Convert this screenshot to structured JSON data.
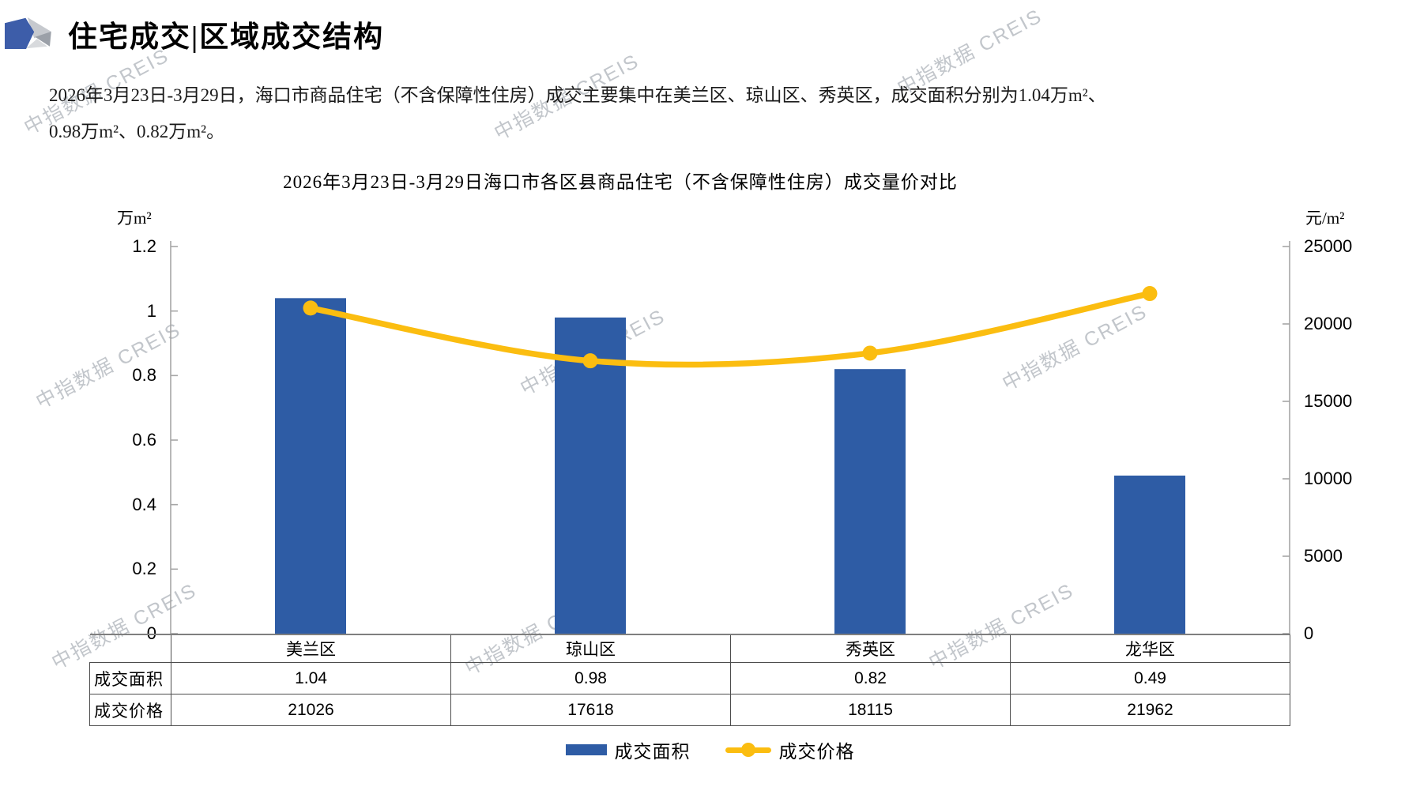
{
  "page": {
    "header": {
      "title": "住宅成交|区域成交结构"
    },
    "intro": {
      "line1": "2026年3月23日-3月29日，海口市商品住宅（不含保障性住房）成交主要集中在美兰区、琼山区、秀英区，成交面积分别为1.04万m²、",
      "line2": "0.98万m²、0.82万m²。"
    },
    "watermark": {
      "text": "中指数据 CREIS"
    }
  },
  "chart_data": {
    "type": "bar+line",
    "title": "2026年3月23日-3月29日海口市各区县商品住宅（不含保障性住房）成交量价对比",
    "categories": [
      "美兰区",
      "琼山区",
      "秀英区",
      "龙华区"
    ],
    "series": [
      {
        "name": "成交面积",
        "type": "bar",
        "axis": "left",
        "unit": "万m²",
        "values": [
          1.04,
          0.98,
          0.82,
          0.49
        ],
        "color": "#2e5ca5"
      },
      {
        "name": "成交价格",
        "type": "line",
        "axis": "right",
        "unit": "元/m²",
        "values": [
          21026,
          17618,
          18115,
          21962
        ],
        "color": "#fbbd10"
      }
    ],
    "left_axis": {
      "label": "万m²",
      "min": 0,
      "max": 1.2,
      "step": 0.2,
      "ticks": [
        "1.2",
        "1",
        "0.8",
        "0.6",
        "0.4",
        "0.2",
        "0"
      ]
    },
    "right_axis": {
      "label": "元/m²",
      "min": 0,
      "max": 25000,
      "step": 5000,
      "ticks": [
        "25000",
        "20000",
        "15000",
        "10000",
        "5000",
        "0"
      ]
    },
    "grid": false,
    "legend_position": "bottom",
    "smooth_line": true
  },
  "table": {
    "row_headers": [
      "成交面积",
      "成交价格"
    ],
    "columns": [
      "美兰区",
      "琼山区",
      "秀英区",
      "龙华区"
    ],
    "rows": [
      [
        "1.04",
        "0.98",
        "0.82",
        "0.49"
      ],
      [
        "21026",
        "17618",
        "18115",
        "21962"
      ]
    ]
  },
  "colors": {
    "bar": "#2e5ca5",
    "line": "#fbbd10",
    "axis": "#a6a6a6",
    "table_border": "#4d4d4d",
    "watermark": "#c2c6cb",
    "logo_blue": "#3d5da9"
  }
}
